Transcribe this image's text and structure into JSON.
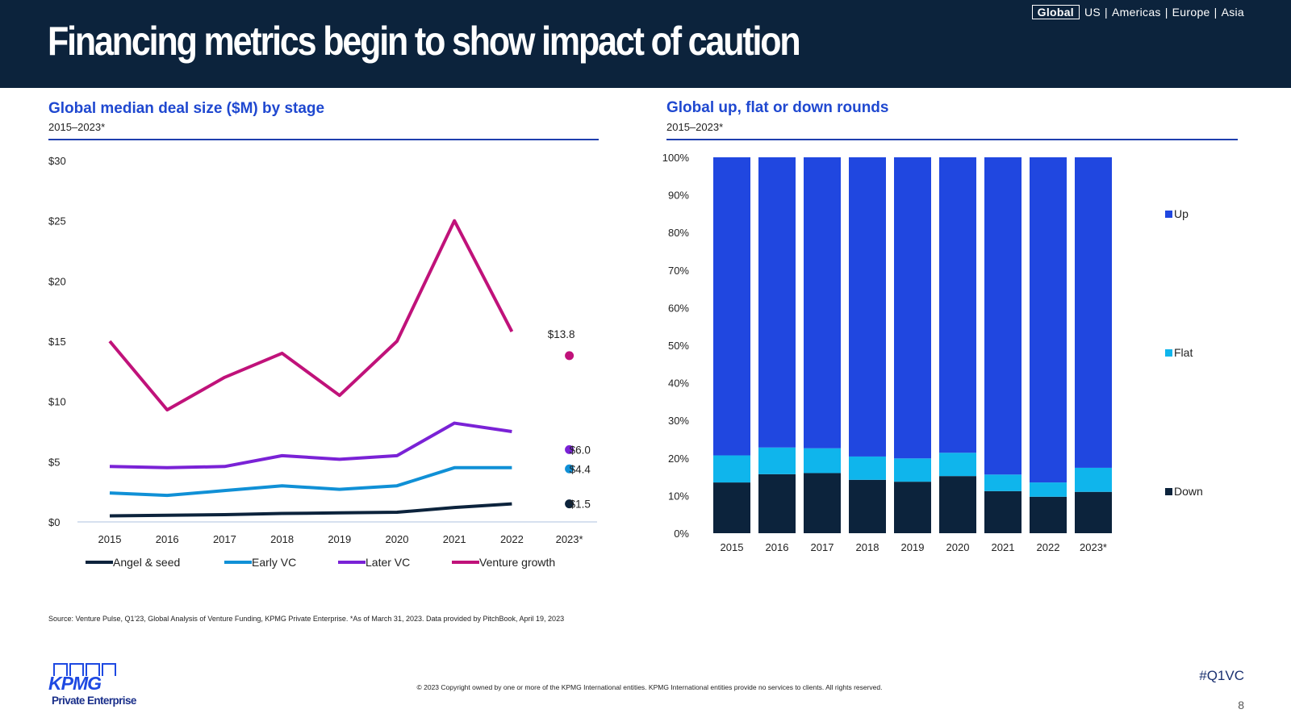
{
  "header": {
    "title": "Financing metrics begin to show impact of caution",
    "regions": [
      {
        "label": "Global",
        "active": true
      },
      {
        "label": "US",
        "active": false
      },
      {
        "label": "Americas",
        "active": false
      },
      {
        "label": "Europe",
        "active": false
      },
      {
        "label": "Asia",
        "active": false
      }
    ],
    "separator": "|"
  },
  "left_panel": {
    "title": "Global median deal size ($M) by stage",
    "subtitle": "2015–2023*"
  },
  "right_panel": {
    "title": "Global up, flat or down rounds",
    "subtitle": "2015–2023*"
  },
  "colors": {
    "navy": "#0c233c",
    "accent_blue": "#1f48d0",
    "angel_seed": "#0c233c",
    "early_vc": "#1090d6",
    "later_vc": "#7a22d6",
    "venture_growth": "#c0127a",
    "up": "#2047e0",
    "flat": "#0fb5ec",
    "down": "#0c233c",
    "axis": "#c8d6ea"
  },
  "chart_data": [
    {
      "type": "line",
      "title": "Global median deal size ($M) by stage",
      "subtitle": "2015–2023*",
      "x": [
        "2015",
        "2016",
        "2017",
        "2018",
        "2019",
        "2020",
        "2021",
        "2022",
        "2023*"
      ],
      "y_ticks": [
        "$0",
        "$5",
        "$10",
        "$15",
        "$20",
        "$25",
        "$30"
      ],
      "ylim": [
        0,
        30
      ],
      "legend_position": "bottom",
      "series": [
        {
          "name": "Angel & seed",
          "values": [
            0.5,
            0.55,
            0.6,
            0.7,
            0.75,
            0.8,
            1.2,
            1.5,
            1.5
          ],
          "last_label": "$1.5"
        },
        {
          "name": "Early VC",
          "values": [
            2.4,
            2.2,
            2.6,
            3.0,
            2.7,
            3.0,
            4.5,
            4.5,
            4.4
          ],
          "last_label": "$4.4"
        },
        {
          "name": "Later VC",
          "values": [
            4.6,
            4.5,
            4.6,
            5.5,
            5.2,
            5.5,
            8.2,
            7.5,
            6.0
          ],
          "last_label": "$6.0"
        },
        {
          "name": "Venture growth",
          "values": [
            15.0,
            9.3,
            12.0,
            14.0,
            10.5,
            15.0,
            25.0,
            15.8,
            13.8
          ],
          "last_label": "$13.8"
        }
      ]
    },
    {
      "type": "bar",
      "stacked": true,
      "title": "Global up, flat or down rounds",
      "subtitle": "2015–2023*",
      "categories": [
        "2015",
        "2016",
        "2017",
        "2018",
        "2019",
        "2020",
        "2021",
        "2022",
        "2023*"
      ],
      "y_ticks": [
        "0%",
        "10%",
        "20%",
        "30%",
        "40%",
        "50%",
        "60%",
        "70%",
        "80%",
        "90%",
        "100%"
      ],
      "ylim": [
        0,
        100
      ],
      "legend_position": "right",
      "series": [
        {
          "name": "Down",
          "values": [
            13.5,
            15.7,
            16.0,
            14.2,
            13.7,
            15.2,
            11.2,
            9.7,
            11.0
          ]
        },
        {
          "name": "Flat",
          "values": [
            7.2,
            7.1,
            6.6,
            6.2,
            6.2,
            6.2,
            4.4,
            3.8,
            6.4
          ]
        },
        {
          "name": "Up",
          "values": [
            79.3,
            77.2,
            77.4,
            79.6,
            80.1,
            78.6,
            84.4,
            86.5,
            82.6
          ]
        }
      ]
    }
  ],
  "footer": {
    "source": "Source: Venture Pulse, Q1'23, Global Analysis of Venture Funding, KPMG Private Enterprise. *As of March 31, 2023. Data provided by PitchBook, April 19, 2023",
    "copyright": "© 2023 Copyright owned by one or more of the KPMG International entities. KPMG International entities provide no services to clients. All rights reserved.",
    "hashtag": "#Q1VC",
    "page_number": "8",
    "logo_text": "KPMG",
    "logo_subtext": "Private Enterprise"
  }
}
